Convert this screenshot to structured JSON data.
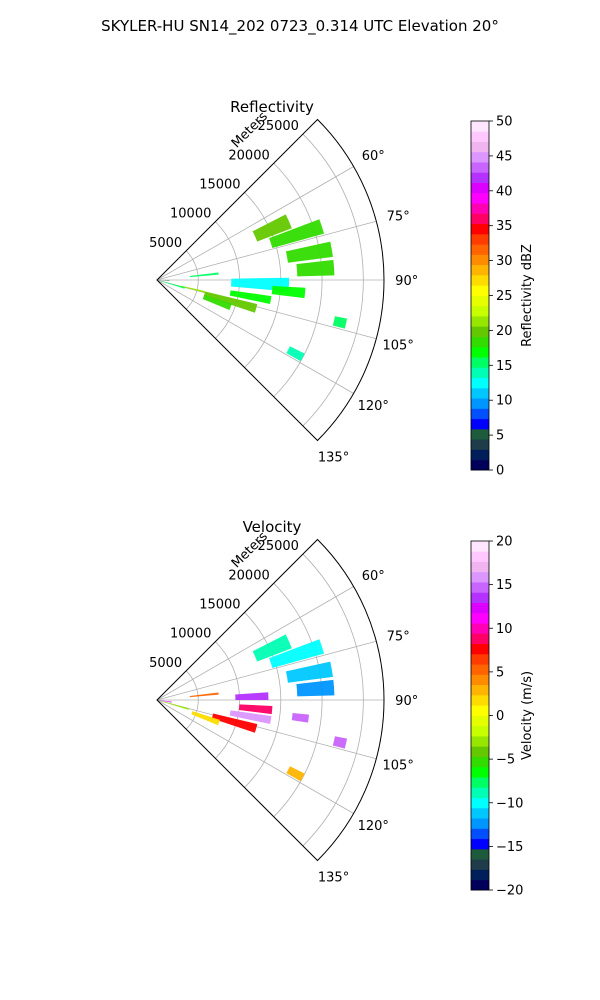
{
  "figure": {
    "title": "SKYLER-HU  SN14_202  0723_0.314 UTC Elevation 20°"
  },
  "chart_data": [
    {
      "type": "polar-sector",
      "title": "Reflectivity",
      "range_label": "Meters",
      "range_ticks": [
        5000,
        10000,
        15000,
        20000,
        25000
      ],
      "range_tick_labels": [
        "5000",
        "10000",
        "15000",
        "20000",
        "25000"
      ],
      "rmax": 27500,
      "azimuth_range": [
        45,
        135
      ],
      "azimuth_ticks": [
        60,
        75,
        90,
        105,
        120,
        135
      ],
      "azimuth_tick_labels": [
        "60°",
        "75°",
        "90°",
        "105°",
        "120°",
        "135°"
      ],
      "grid": true,
      "colorbar": {
        "label": "Reflectivity dBZ",
        "min": 0,
        "max": 50,
        "ticks": [
          0,
          5,
          10,
          15,
          20,
          25,
          30,
          35,
          40,
          45,
          50
        ],
        "tick_labels": [
          "0",
          "5",
          "10",
          "15",
          "20",
          "25",
          "30",
          "35",
          "40",
          "45",
          "50"
        ],
        "colors": [
          "#00005a",
          "#001e5a",
          "#1f3c4a",
          "#1e5a3c",
          "#0000ff",
          "#0050ff",
          "#0096ff",
          "#00c8ff",
          "#00ffff",
          "#00ffb4",
          "#00ff64",
          "#00ff00",
          "#32dc00",
          "#64c800",
          "#96e600",
          "#c8ff00",
          "#e6ff00",
          "#ffff00",
          "#ffdc00",
          "#ffb400",
          "#ff8c00",
          "#ff6400",
          "#ff3c00",
          "#ff0000",
          "#ff0064",
          "#ff00b4",
          "#ff00ff",
          "#dc00ff",
          "#b432ff",
          "#c864ff",
          "#dc96ff",
          "#f0b4f0",
          "#ffc8ff",
          "#ffe6ff"
        ]
      },
      "echoes": [
        {
          "az": 66,
          "r_start": 13000,
          "r_end": 17500,
          "width_deg": 6,
          "value": 20
        },
        {
          "az": 72,
          "r_start": 14500,
          "r_end": 21000,
          "width_deg": 5,
          "value": 19
        },
        {
          "az": 80,
          "r_start": 16000,
          "r_end": 21500,
          "width_deg": 5,
          "value": 19
        },
        {
          "az": 86,
          "r_start": 17000,
          "r_end": 21500,
          "width_deg": 5,
          "value": 18
        },
        {
          "az": 92,
          "r_start": 9000,
          "r_end": 16000,
          "width_deg": 6,
          "value": 13
        },
        {
          "az": 95,
          "r_start": 14000,
          "r_end": 18000,
          "width_deg": 4,
          "value": 17
        },
        {
          "az": 100,
          "r_start": 9000,
          "r_end": 14000,
          "width_deg": 4,
          "value": 17
        },
        {
          "az": 106,
          "r_start": 6000,
          "r_end": 12500,
          "width_deg": 5,
          "value": 20
        },
        {
          "az": 110,
          "r_start": 6000,
          "r_end": 9500,
          "width_deg": 5,
          "value": 19
        },
        {
          "az": 104,
          "r_start": 3000,
          "r_end": 6000,
          "width_deg": 2,
          "value": 22
        },
        {
          "az": 106,
          "r_start": 500,
          "r_end": 3500,
          "width_deg": 3,
          "value": 16
        },
        {
          "az": 93,
          "r_start": 300,
          "r_end": 1500,
          "width_deg": 2,
          "value": 5
        },
        {
          "az": 84,
          "r_start": 4000,
          "r_end": 7500,
          "width_deg": 2,
          "value": 16
        },
        {
          "az": 118,
          "r_start": 18000,
          "r_end": 20000,
          "width_deg": 3,
          "value": 14
        },
        {
          "az": 103,
          "r_start": 22000,
          "r_end": 23500,
          "width_deg": 3,
          "value": 15
        }
      ]
    },
    {
      "type": "polar-sector",
      "title": "Velocity",
      "range_label": "Meters",
      "range_ticks": [
        5000,
        10000,
        15000,
        20000,
        25000
      ],
      "range_tick_labels": [
        "5000",
        "10000",
        "15000",
        "20000",
        "25000"
      ],
      "rmax": 27500,
      "azimuth_range": [
        45,
        135
      ],
      "azimuth_ticks": [
        60,
        75,
        90,
        105,
        120,
        135
      ],
      "azimuth_tick_labels": [
        "60°",
        "75°",
        "90°",
        "105°",
        "120°",
        "135°"
      ],
      "grid": true,
      "colorbar": {
        "label": "Velocity (m/s)",
        "min": -20,
        "max": 20,
        "ticks": [
          -20,
          -15,
          -10,
          -5,
          0,
          5,
          10,
          15,
          20
        ],
        "tick_labels": [
          "−20",
          "−15",
          "−10",
          "−5",
          "0",
          "5",
          "10",
          "15",
          "20"
        ],
        "colors": [
          "#00005a",
          "#001e5a",
          "#1f3c4a",
          "#1e5a3c",
          "#0000ff",
          "#0050ff",
          "#0096ff",
          "#00c8ff",
          "#00ffff",
          "#00ffb4",
          "#00ff64",
          "#00ff00",
          "#32dc00",
          "#64c800",
          "#96e600",
          "#c8ff00",
          "#e6ff00",
          "#ffff00",
          "#ffdc00",
          "#ffb400",
          "#ff8c00",
          "#ff6400",
          "#ff3c00",
          "#ff0000",
          "#ff0064",
          "#ff00b4",
          "#ff00ff",
          "#dc00ff",
          "#b432ff",
          "#c864ff",
          "#dc96ff",
          "#f0b4f0",
          "#ffc8ff",
          "#ffe6ff"
        ]
      },
      "echoes": [
        {
          "az": 66,
          "r_start": 13000,
          "r_end": 17500,
          "width_deg": 6,
          "value": -9
        },
        {
          "az": 72,
          "r_start": 14500,
          "r_end": 21000,
          "width_deg": 5,
          "value": -10
        },
        {
          "az": 80,
          "r_start": 16000,
          "r_end": 21500,
          "width_deg": 5,
          "value": -11
        },
        {
          "az": 86,
          "r_start": 17000,
          "r_end": 21500,
          "width_deg": 5,
          "value": -12
        },
        {
          "az": 88,
          "r_start": 9500,
          "r_end": 13500,
          "width_deg": 4,
          "value": 14
        },
        {
          "az": 95,
          "r_start": 10000,
          "r_end": 14000,
          "width_deg": 4,
          "value": 9
        },
        {
          "az": 97,
          "r_start": 16500,
          "r_end": 18500,
          "width_deg": 3,
          "value": 15
        },
        {
          "az": 100,
          "r_start": 9000,
          "r_end": 14000,
          "width_deg": 4,
          "value": 16
        },
        {
          "az": 106,
          "r_start": 7000,
          "r_end": 12500,
          "width_deg": 5,
          "value": 8
        },
        {
          "az": 110,
          "r_start": 4500,
          "r_end": 8000,
          "width_deg": 5,
          "value": 2
        },
        {
          "az": 106,
          "r_start": 500,
          "r_end": 4000,
          "width_deg": 3,
          "value": -3
        },
        {
          "az": 98,
          "r_start": 300,
          "r_end": 1800,
          "width_deg": 3,
          "value": 12
        },
        {
          "az": 84,
          "r_start": 4000,
          "r_end": 7500,
          "width_deg": 2,
          "value": 5
        },
        {
          "az": 118,
          "r_start": 18000,
          "r_end": 20000,
          "width_deg": 3,
          "value": 3
        },
        {
          "az": 103,
          "r_start": 22000,
          "r_end": 23500,
          "width_deg": 3,
          "value": 15
        }
      ]
    }
  ]
}
